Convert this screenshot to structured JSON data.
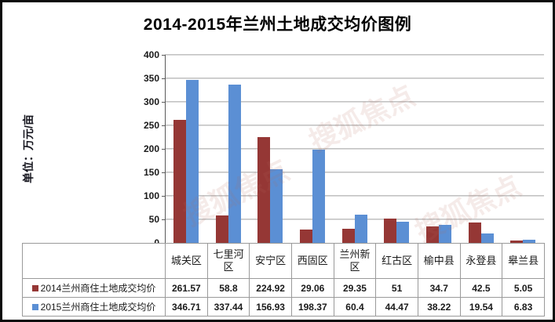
{
  "title": "2014-2015年兰州土地成交均价图例",
  "y_axis_unit": "单位：万元/亩",
  "watermark": "搜狐焦点",
  "chart_data": {
    "type": "bar",
    "title": "2014-2015年兰州土地成交均价图例",
    "xlabel": "",
    "ylabel": "单位：万元/亩",
    "categories": [
      "城关区",
      "七里河区",
      "安宁区",
      "西固区",
      "兰州新区",
      "红古区",
      "榆中县",
      "永登县",
      "皋兰县"
    ],
    "series": [
      {
        "name": "2014兰州商住土地成交均价",
        "color": "#953735",
        "values": [
          261.57,
          58.8,
          224.92,
          29.06,
          29.35,
          51,
          34.7,
          42.5,
          5.05
        ]
      },
      {
        "name": "2015兰州商住土地成交均价",
        "color": "#5B8FD4",
        "values": [
          346.71,
          337.44,
          156.93,
          198.37,
          60.4,
          44.47,
          38.22,
          19.54,
          6.83
        ]
      }
    ],
    "ylim": [
      0,
      400
    ],
    "yticks": [
      0,
      50,
      100,
      150,
      200,
      250,
      300,
      350,
      400
    ],
    "grid": true,
    "legend_position": "table-left"
  }
}
